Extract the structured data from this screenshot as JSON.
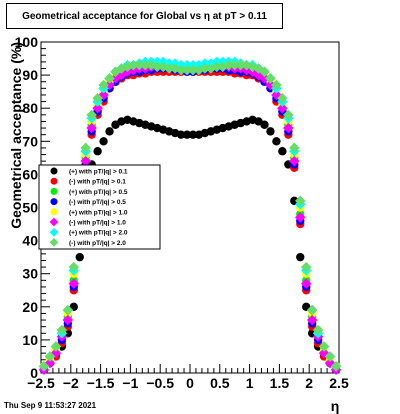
{
  "chart_data": {
    "type": "scatter",
    "title": "Geometrical acceptance for Global vs   η  at pT > 0.11",
    "xlabel": "η",
    "ylabel": "Geometrical acceptance (%)",
    "xlim": [
      -2.5,
      2.5
    ],
    "ylim": [
      0,
      100
    ],
    "x_ticks": [
      -2.5,
      -2,
      -1.5,
      -1,
      -0.5,
      0,
      0.5,
      1,
      1.5,
      2,
      2.5
    ],
    "x_tick_labels": [
      "−2.5",
      "−2",
      "−1.5",
      "−1",
      "−0.5",
      "0",
      "0.5",
      "1",
      "1.5",
      "2",
      "2.5"
    ],
    "y_ticks": [
      0,
      10,
      20,
      30,
      40,
      50,
      60,
      70,
      80,
      90,
      100
    ],
    "y_tick_labels": [
      "0",
      "10",
      "20",
      "30",
      "40",
      "50",
      "60",
      "70",
      "80",
      "90",
      "100"
    ],
    "grid": false,
    "legend_position": "left-middle",
    "series": [
      {
        "name": "(+) with pT/|q| > 0.1",
        "color": "#000000",
        "marker": "circle",
        "x": [
          -2.45,
          -2.35,
          -2.25,
          -2.15,
          -2.05,
          -1.95,
          -1.85,
          -1.75,
          -1.65,
          -1.55,
          -1.45,
          -1.35,
          -1.25,
          -1.15,
          -1.05,
          -0.95,
          -0.85,
          -0.75,
          -0.65,
          -0.55,
          -0.45,
          -0.35,
          -0.25,
          -0.15,
          -0.05,
          0.05,
          0.15,
          0.25,
          0.35,
          0.45,
          0.55,
          0.65,
          0.75,
          0.85,
          0.95,
          1.05,
          1.15,
          1.25,
          1.35,
          1.45,
          1.55,
          1.65,
          1.75,
          1.85,
          1.95,
          2.05,
          2.15,
          2.25,
          2.35,
          2.45
        ],
        "y": [
          1,
          3,
          5,
          8,
          12,
          20,
          35,
          52,
          63,
          67,
          70,
          73,
          75,
          76,
          76.5,
          76,
          75.5,
          75,
          74.5,
          74,
          73.5,
          73,
          72.5,
          72,
          72,
          72,
          72,
          72.5,
          73,
          73.5,
          74,
          74.5,
          75,
          75.5,
          76,
          76.5,
          76,
          75,
          73,
          70,
          67,
          63,
          52,
          35,
          20,
          12,
          8,
          5,
          3,
          1
        ]
      },
      {
        "name": "(-) with pT/|q| > 0.1",
        "color": "#ff0000",
        "marker": "circle",
        "x": [
          -2.45,
          -2.35,
          -2.25,
          -2.15,
          -2.05,
          -1.95,
          -1.85,
          -1.75,
          -1.65,
          -1.55,
          -1.45,
          -1.35,
          -1.25,
          -1.15,
          -1.05,
          -0.95,
          -0.85,
          -0.75,
          -0.65,
          -0.55,
          -0.45,
          -0.35,
          -0.25,
          -0.15,
          -0.05,
          0.05,
          0.15,
          0.25,
          0.35,
          0.45,
          0.55,
          0.65,
          0.75,
          0.85,
          0.95,
          1.05,
          1.15,
          1.25,
          1.35,
          1.45,
          1.55,
          1.65,
          1.75,
          1.85,
          1.95,
          2.05,
          2.15,
          2.25,
          2.35,
          2.45
        ],
        "y": [
          1,
          3,
          5,
          9,
          14,
          25,
          45,
          62,
          72,
          78,
          82,
          86,
          88,
          89,
          90,
          90,
          90.5,
          90.5,
          91,
          91,
          91,
          91,
          91,
          91,
          91,
          91,
          91,
          91,
          91,
          91,
          91,
          91,
          90.5,
          90.5,
          90,
          90,
          89,
          88,
          86,
          82,
          78,
          72,
          62,
          45,
          25,
          14,
          9,
          5,
          3,
          1
        ]
      },
      {
        "name": "(+) with pT/|q| > 0.5",
        "color": "#00ee00",
        "marker": "circle",
        "x": [
          -2.45,
          -2.35,
          -2.25,
          -2.15,
          -2.05,
          -1.95,
          -1.85,
          -1.75,
          -1.65,
          -1.55,
          -1.45,
          -1.35,
          -1.25,
          -1.15,
          -1.05,
          -0.95,
          -0.85,
          -0.75,
          -0.65,
          -0.55,
          -0.45,
          -0.35,
          -0.25,
          -0.15,
          -0.05,
          0.05,
          0.15,
          0.25,
          0.35,
          0.45,
          0.55,
          0.65,
          0.75,
          0.85,
          0.95,
          1.05,
          1.15,
          1.25,
          1.35,
          1.45,
          1.55,
          1.65,
          1.75,
          1.85,
          1.95,
          2.05,
          2.15,
          2.25,
          2.35,
          2.45
        ],
        "y": [
          2,
          4,
          7,
          11,
          17,
          28,
          48,
          65,
          75,
          80,
          84,
          87,
          89,
          90,
          91,
          91,
          91.5,
          92,
          92,
          92,
          92.5,
          92,
          92,
          92,
          91.5,
          91.5,
          92,
          92,
          92,
          92.5,
          92,
          92,
          92,
          91.5,
          91,
          91,
          90,
          89,
          87,
          84,
          80,
          75,
          65,
          48,
          28,
          17,
          11,
          7,
          4,
          2
        ]
      },
      {
        "name": "(-) with pT/|q| > 0.5",
        "color": "#0000ff",
        "marker": "circle",
        "x": [
          -2.45,
          -2.35,
          -2.25,
          -2.15,
          -2.05,
          -1.95,
          -1.85,
          -1.75,
          -1.65,
          -1.55,
          -1.45,
          -1.35,
          -1.25,
          -1.15,
          -1.05,
          -0.95,
          -0.85,
          -0.75,
          -0.65,
          -0.55,
          -0.45,
          -0.35,
          -0.25,
          -0.15,
          -0.05,
          0.05,
          0.15,
          0.25,
          0.35,
          0.45,
          0.55,
          0.65,
          0.75,
          0.85,
          0.95,
          1.05,
          1.15,
          1.25,
          1.35,
          1.45,
          1.55,
          1.65,
          1.75,
          1.85,
          1.95,
          2.05,
          2.15,
          2.25,
          2.35,
          2.45
        ],
        "y": [
          1,
          3,
          6,
          10,
          15,
          26,
          46,
          63,
          73,
          79,
          83,
          86,
          88,
          89.5,
          90.5,
          91,
          91,
          91.5,
          91.5,
          92,
          92,
          92,
          91.5,
          91.5,
          91,
          91,
          91.5,
          91.5,
          92,
          92,
          92,
          91.5,
          91.5,
          91,
          91,
          90.5,
          89.5,
          88,
          86,
          83,
          79,
          73,
          63,
          46,
          26,
          15,
          10,
          6,
          3,
          1
        ]
      },
      {
        "name": "(+) with pT/|q| > 1.0",
        "color": "#ffff00",
        "marker": "circle",
        "x": [
          -2.45,
          -2.35,
          -2.25,
          -2.15,
          -2.05,
          -1.95,
          -1.85,
          -1.75,
          -1.65,
          -1.55,
          -1.45,
          -1.35,
          -1.25,
          -1.15,
          -1.05,
          -0.95,
          -0.85,
          -0.75,
          -0.65,
          -0.55,
          -0.45,
          -0.35,
          -0.25,
          -0.15,
          -0.05,
          0.05,
          0.15,
          0.25,
          0.35,
          0.45,
          0.55,
          0.65,
          0.75,
          0.85,
          0.95,
          1.05,
          1.15,
          1.25,
          1.35,
          1.45,
          1.55,
          1.65,
          1.75,
          1.85,
          1.95,
          2.05,
          2.15,
          2.25,
          2.35,
          2.45
        ],
        "y": [
          2,
          4,
          7,
          12,
          18,
          30,
          50,
          66,
          76,
          81,
          85,
          88,
          90,
          91,
          92,
          92,
          92.5,
          93,
          93,
          93,
          93,
          93,
          92.5,
          92.5,
          92,
          92,
          92.5,
          92.5,
          93,
          93,
          93,
          93,
          93,
          92.5,
          92,
          92,
          91,
          90,
          88,
          85,
          81,
          76,
          66,
          50,
          30,
          18,
          12,
          7,
          4,
          2
        ]
      },
      {
        "name": "(-) with pT/|q| > 1.0",
        "color": "#ff00ff",
        "marker": "diamond",
        "x": [
          -2.45,
          -2.35,
          -2.25,
          -2.15,
          -2.05,
          -1.95,
          -1.85,
          -1.75,
          -1.65,
          -1.55,
          -1.45,
          -1.35,
          -1.25,
          -1.15,
          -1.05,
          -0.95,
          -0.85,
          -0.75,
          -0.65,
          -0.55,
          -0.45,
          -0.35,
          -0.25,
          -0.15,
          -0.05,
          0.05,
          0.15,
          0.25,
          0.35,
          0.45,
          0.55,
          0.65,
          0.75,
          0.85,
          0.95,
          1.05,
          1.15,
          1.25,
          1.35,
          1.45,
          1.55,
          1.65,
          1.75,
          1.85,
          1.95,
          2.05,
          2.15,
          2.25,
          2.35,
          2.45
        ],
        "y": [
          1,
          3,
          6,
          11,
          16,
          27,
          47,
          64,
          74,
          80,
          84,
          87,
          89,
          90,
          91,
          91.5,
          92,
          92,
          92.5,
          92.5,
          92.5,
          92.5,
          92,
          92,
          91.5,
          91.5,
          92,
          92,
          92.5,
          92.5,
          92.5,
          92.5,
          92,
          92,
          91.5,
          91,
          90,
          89,
          87,
          84,
          80,
          74,
          64,
          47,
          27,
          16,
          11,
          6,
          3,
          1
        ]
      },
      {
        "name": "(+) with pT/|q| > 2.0",
        "color": "#00ffff",
        "marker": "diamond",
        "x": [
          -2.45,
          -2.35,
          -2.25,
          -2.15,
          -2.05,
          -1.95,
          -1.85,
          -1.75,
          -1.65,
          -1.55,
          -1.45,
          -1.35,
          -1.25,
          -1.15,
          -1.05,
          -0.95,
          -0.85,
          -0.75,
          -0.65,
          -0.55,
          -0.45,
          -0.35,
          -0.25,
          -0.15,
          -0.05,
          0.05,
          0.15,
          0.25,
          0.35,
          0.45,
          0.55,
          0.65,
          0.75,
          0.85,
          0.95,
          1.05,
          1.15,
          1.25,
          1.35,
          1.45,
          1.55,
          1.65,
          1.75,
          1.85,
          1.95,
          2.05,
          2.15,
          2.25,
          2.35,
          2.45
        ],
        "y": [
          2,
          5,
          8,
          12,
          19,
          31,
          51,
          67,
          77,
          82,
          86,
          89,
          91,
          92,
          93,
          93,
          93.5,
          94,
          94,
          94,
          94,
          93.5,
          93.5,
          93,
          93,
          93,
          93,
          93.5,
          93.5,
          94,
          94,
          94,
          94,
          93.5,
          93,
          93,
          92,
          91,
          89,
          86,
          82,
          77,
          67,
          51,
          31,
          19,
          12,
          8,
          5,
          2
        ]
      },
      {
        "name": "(-) with pT/|q| > 2.0",
        "color": "#66dd66",
        "marker": "diamond",
        "x": [
          -2.45,
          -2.35,
          -2.25,
          -2.15,
          -2.05,
          -1.95,
          -1.85,
          -1.75,
          -1.65,
          -1.55,
          -1.45,
          -1.35,
          -1.25,
          -1.15,
          -1.05,
          -0.95,
          -0.85,
          -0.75,
          -0.65,
          -0.55,
          -0.45,
          -0.35,
          -0.25,
          -0.15,
          -0.05,
          0.05,
          0.15,
          0.25,
          0.35,
          0.45,
          0.55,
          0.65,
          0.75,
          0.85,
          0.95,
          1.05,
          1.15,
          1.25,
          1.35,
          1.45,
          1.55,
          1.65,
          1.75,
          1.85,
          1.95,
          2.05,
          2.15,
          2.25,
          2.35,
          2.45
        ],
        "y": [
          2,
          5,
          8,
          13,
          19,
          32,
          52,
          68,
          78,
          83,
          87,
          89,
          91,
          92,
          92.5,
          93,
          93,
          93,
          93,
          92.5,
          92.5,
          92,
          92,
          91.5,
          91.5,
          91.5,
          91.5,
          92,
          92,
          92.5,
          92.5,
          93,
          93,
          93,
          93,
          92.5,
          92,
          91,
          89,
          87,
          83,
          78,
          68,
          52,
          32,
          19,
          13,
          8,
          5,
          2
        ]
      }
    ]
  },
  "footer": {
    "timestamp": "Thu Sep  9 11:53:27 2021"
  }
}
